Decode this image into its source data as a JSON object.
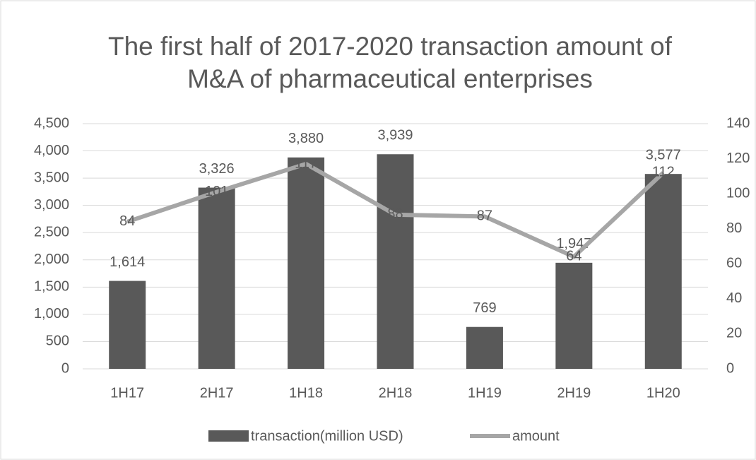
{
  "chart_data": {
    "type": "bar",
    "title": [
      "The first half of 2017-2020 transaction amount of",
      "M&A of pharmaceutical enterprises"
    ],
    "categories": [
      "1H17",
      "2H17",
      "1H18",
      "2H18",
      "1H19",
      "2H19",
      "1H20"
    ],
    "series": [
      {
        "name": "transaction(million USD)",
        "color": "#595959",
        "values": [
          1614,
          3326,
          3880,
          3939,
          769,
          1947,
          3577
        ],
        "value_labels": [
          "1,614",
          "3,326",
          "3,880",
          "3,939",
          "769",
          "1,947",
          "3,577"
        ]
      },
      {
        "name": "amount",
        "type": "line",
        "axis": "y2",
        "color": "#a6a6a6",
        "values": [
          84,
          101,
          117,
          88,
          87,
          64,
          112
        ]
      }
    ],
    "ylim": [
      0,
      4500
    ],
    "yticks": [
      0,
      {
        "value": 500,
        "label": "500"
      },
      {
        "value": 1000,
        "label": "1,000"
      },
      {
        "value": 1500,
        "label": "1,500"
      },
      {
        "value": 2000,
        "label": "2,000"
      },
      {
        "value": 2500,
        "label": "2,500"
      },
      {
        "value": 3000,
        "label": "3,000"
      },
      {
        "value": 3500,
        "label": "3,500"
      },
      {
        "value": 4000,
        "label": "4,000"
      },
      {
        "value": 4500,
        "label": "4,500"
      }
    ],
    "y2lim": [
      0,
      140
    ],
    "y2ticks": [
      0,
      20,
      40,
      60,
      80,
      100,
      120,
      140
    ],
    "grid": true,
    "legend": "bottom"
  }
}
